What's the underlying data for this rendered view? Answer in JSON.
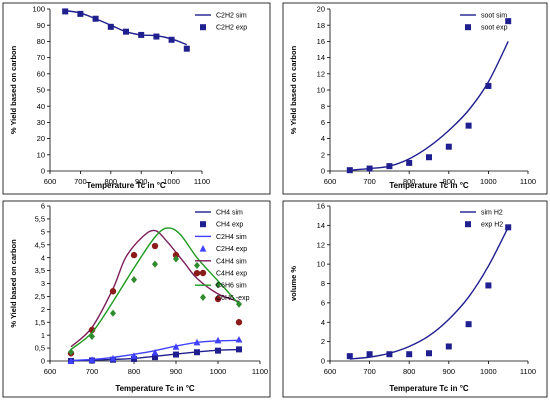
{
  "chart_data": [
    {
      "id": "c2h2",
      "type": "line+scatter",
      "title": "",
      "xlabel": "Temperature Tc in °C",
      "ylabel": "%  Yield based on carbon",
      "xlim": [
        600,
        1100
      ],
      "ylim": [
        0,
        100
      ],
      "xticks": [
        600,
        700,
        800,
        900,
        1000,
        1100
      ],
      "yticks": [
        0,
        10,
        20,
        30,
        40,
        50,
        60,
        70,
        80,
        90,
        100
      ],
      "grid": false,
      "legend": "top-right",
      "series": [
        {
          "name": "C2H2 sim",
          "kind": "line",
          "color": "#1f1f8f",
          "x": [
            650,
            700,
            750,
            800,
            850,
            900,
            950,
            1000,
            1050
          ],
          "y": [
            99,
            97.5,
            94,
            90,
            86,
            84,
            83.5,
            81.5,
            78
          ]
        },
        {
          "name": "C2H2 exp",
          "kind": "marker",
          "marker": "square",
          "color": "#1f1f8f",
          "x": [
            650,
            700,
            750,
            800,
            850,
            900,
            950,
            1000,
            1050
          ],
          "y": [
            98.5,
            97,
            94,
            89,
            86,
            84,
            83,
            81,
            75.5
          ]
        }
      ]
    },
    {
      "id": "soot",
      "type": "line+scatter",
      "title": "",
      "xlabel": "Temperature Tc in °C",
      "ylabel": "%  Yield based on carbon",
      "xlim": [
        600,
        1100
      ],
      "ylim": [
        0,
        20
      ],
      "xticks": [
        600,
        700,
        800,
        900,
        1000,
        1100
      ],
      "yticks": [
        0,
        2,
        4,
        6,
        8,
        10,
        12,
        14,
        16,
        18,
        20
      ],
      "grid": false,
      "legend": "top-right",
      "series": [
        {
          "name": "soot sim",
          "kind": "line",
          "color": "#1f1f8f",
          "x": [
            650,
            700,
            750,
            800,
            850,
            900,
            950,
            1000,
            1050
          ],
          "y": [
            0.1,
            0.3,
            0.6,
            1.5,
            3.0,
            5.0,
            7.5,
            11.0,
            16.0
          ]
        },
        {
          "name": "soot exp",
          "kind": "marker",
          "marker": "square",
          "color": "#1f1f8f",
          "x": [
            650,
            700,
            750,
            800,
            850,
            900,
            950,
            1000,
            1050
          ],
          "y": [
            0.1,
            0.3,
            0.6,
            1.0,
            1.7,
            3.0,
            5.6,
            10.5,
            18.5
          ]
        }
      ]
    },
    {
      "id": "hydrocarbons",
      "type": "line+scatter",
      "title": "",
      "xlabel": "Temperature Tc in °C",
      "ylabel": "% Yield based on carbon",
      "xlim": [
        600,
        1100
      ],
      "ylim": [
        0,
        6
      ],
      "xticks": [
        600,
        700,
        800,
        900,
        1000,
        1100
      ],
      "yticks": [
        0,
        0.5,
        1,
        1.5,
        2,
        2.5,
        3,
        3.5,
        4,
        4.5,
        5,
        5.5,
        6
      ],
      "yticklabels": [
        "0",
        "0,5",
        "1",
        "1,5",
        "2",
        "2,5",
        "3",
        "3,5",
        "4",
        "4,5",
        "5",
        "5,5",
        "6"
      ],
      "grid": false,
      "legend": "top-right",
      "series": [
        {
          "name": "CH4 sim",
          "kind": "line",
          "color": "#1f1f8f",
          "x": [
            650,
            700,
            750,
            800,
            850,
            900,
            950,
            1000,
            1050
          ],
          "y": [
            0.01,
            0.03,
            0.06,
            0.1,
            0.18,
            0.27,
            0.35,
            0.42,
            0.44
          ]
        },
        {
          "name": "CH4 exp",
          "kind": "marker",
          "marker": "square",
          "color": "#1f1f8f",
          "x": [
            650,
            700,
            750,
            800,
            850,
            900,
            950,
            1000,
            1050
          ],
          "y": [
            0.0,
            0.02,
            0.05,
            0.08,
            0.15,
            0.25,
            0.34,
            0.4,
            0.45
          ]
        },
        {
          "name": "C2H4 sim",
          "kind": "line",
          "color": "#4040ff",
          "x": [
            650,
            700,
            750,
            800,
            850,
            900,
            950,
            1000,
            1050
          ],
          "y": [
            0.02,
            0.06,
            0.14,
            0.26,
            0.4,
            0.58,
            0.72,
            0.78,
            0.8
          ]
        },
        {
          "name": "C2H4 exp",
          "kind": "marker",
          "marker": "triangle",
          "color": "#4040ff",
          "x": [
            650,
            700,
            750,
            800,
            850,
            900,
            950,
            1000,
            1050
          ],
          "y": [
            0.0,
            0.05,
            0.1,
            0.2,
            0.33,
            0.55,
            0.72,
            0.8,
            0.83
          ]
        },
        {
          "name": "C4H4 sim",
          "kind": "line",
          "color": "#7a1f5a",
          "x": [
            650,
            700,
            750,
            780,
            820,
            850,
            880,
            920,
            950,
            1000,
            1050
          ],
          "y": [
            0.55,
            1.3,
            2.8,
            4.0,
            4.8,
            5.05,
            4.6,
            3.8,
            3.2,
            2.6,
            2.3
          ]
        },
        {
          "name": "C4H4 exp",
          "kind": "marker",
          "marker": "circle",
          "color": "#8b1a1a",
          "x": [
            650,
            700,
            750,
            800,
            850,
            900,
            950,
            1000,
            1050
          ],
          "y": [
            0.3,
            1.2,
            2.7,
            4.1,
            4.45,
            4.1,
            3.4,
            2.4,
            1.5
          ]
        },
        {
          "name": "C6H6 sim",
          "kind": "line",
          "color": "#1e9a1e",
          "x": [
            650,
            700,
            750,
            800,
            850,
            880,
            910,
            950,
            1000,
            1050
          ],
          "y": [
            0.45,
            1.1,
            2.3,
            3.6,
            4.8,
            5.15,
            4.9,
            4.0,
            3.1,
            2.2
          ]
        },
        {
          "name": "C6H6 -exp",
          "kind": "marker",
          "marker": "diamond",
          "color": "#2e8b2e",
          "x": [
            650,
            700,
            750,
            800,
            850,
            900,
            950,
            1000,
            1050
          ],
          "y": [
            0.35,
            0.95,
            1.85,
            3.15,
            3.75,
            3.95,
            3.7,
            2.95,
            2.2
          ]
        }
      ]
    },
    {
      "id": "h2",
      "type": "line+scatter",
      "title": "",
      "xlabel": "Temperature Tc in °C",
      "ylabel": "volume %",
      "xlim": [
        600,
        1100
      ],
      "ylim": [
        0,
        16
      ],
      "xticks": [
        600,
        700,
        800,
        900,
        1000,
        1100
      ],
      "yticks": [
        0,
        2,
        4,
        6,
        8,
        10,
        12,
        14,
        16
      ],
      "grid": false,
      "legend": "top-right",
      "series": [
        {
          "name": "sim H2",
          "kind": "line",
          "color": "#1f1f8f",
          "x": [
            650,
            700,
            750,
            800,
            850,
            900,
            950,
            1000,
            1050
          ],
          "y": [
            0.2,
            0.4,
            0.8,
            1.5,
            2.6,
            4.3,
            6.6,
            9.8,
            13.8
          ]
        },
        {
          "name": "exp H2",
          "kind": "marker",
          "marker": "square",
          "color": "#1f1f8f",
          "x": [
            650,
            700,
            750,
            800,
            850,
            900,
            950,
            1000,
            1050
          ],
          "y": [
            0.5,
            0.7,
            0.7,
            0.7,
            0.8,
            1.5,
            3.8,
            7.8,
            13.8
          ]
        }
      ]
    }
  ]
}
